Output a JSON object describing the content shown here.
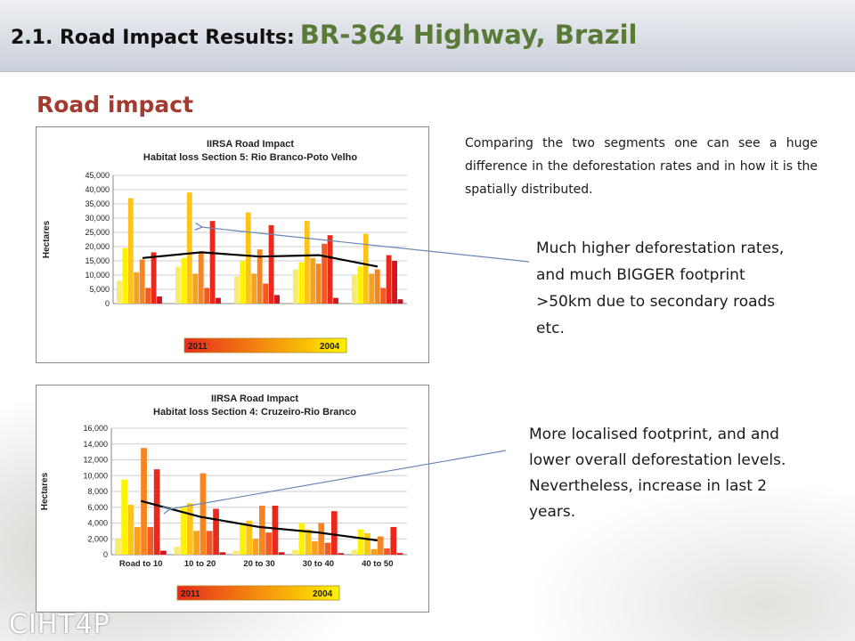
{
  "slide": {
    "title_prefix": "2.1.  Road Impact Results:",
    "title_main": "BR-364 Highway, Brazil",
    "subheading": "Road impact",
    "note_top": "Comparing the two segments one can see a huge difference in the deforestation rates and in how it is the spatially distributed.",
    "note_mid": "Much higher deforestation rates, and much BIGGER footprint >50km due to secondary roads etc.",
    "note_bot": "More localised footprint, and and lower overall deforestation levels.  Nevertheless, increase in last 2 years.",
    "logo_text": "CIHT",
    "logo_mark": "4P"
  },
  "chart_data": [
    {
      "type": "bar",
      "title": "IIRSA Road Impact",
      "subtitle": "Habitat loss Section 5: Rio Branco-Poto Velho",
      "ylabel": "Hectares",
      "ylim": [
        0,
        45000
      ],
      "yticks": [
        0,
        5000,
        10000,
        15000,
        20000,
        25000,
        30000,
        35000,
        40000,
        45000
      ],
      "ytick_labels": [
        "0",
        "5,000",
        "10,000",
        "15,000",
        "20,000",
        "25,000",
        "30,000",
        "35,000",
        "40,000",
        "45,000"
      ],
      "categories": [
        "",
        "",
        "",
        "",
        ""
      ],
      "series": [
        {
          "color": "#f7ec6e",
          "values": [
            8000,
            13000,
            9500,
            12000,
            10000
          ]
        },
        {
          "color": "#fff200",
          "values": [
            19500,
            16000,
            15000,
            14500,
            13000
          ]
        },
        {
          "color": "#fcc419",
          "values": [
            37000,
            39000,
            32000,
            29000,
            24500
          ]
        },
        {
          "color": "#f9a11b",
          "values": [
            11000,
            10500,
            10500,
            16000,
            10500
          ]
        },
        {
          "color": "#f7841f",
          "values": [
            15500,
            18000,
            19000,
            14000,
            12000
          ]
        },
        {
          "color": "#f15a24",
          "values": [
            5500,
            5500,
            7000,
            21000,
            5500
          ]
        },
        {
          "color": "#e8291c",
          "values": [
            18000,
            29000,
            27500,
            24000,
            17000
          ]
        },
        {
          "color": "#d4131b",
          "values": [
            2500,
            2000,
            3000,
            2000,
            15000
          ]
        },
        {
          "color": "#c1121f",
          "values": [
            0,
            0,
            0,
            0,
            1500
          ]
        }
      ],
      "trend": [
        16000,
        18000,
        16500,
        17000,
        13000
      ],
      "trend_color": "#000000",
      "legend": {
        "left_label": "2011",
        "right_label": "2004",
        "colors": [
          "#e8291c",
          "#fff200"
        ]
      }
    },
    {
      "type": "bar",
      "title": "IIRSA Road Impact",
      "subtitle": "Habitat loss Section 4: Cruzeiro-Rio Branco",
      "ylabel": "Hectares",
      "ylim": [
        0,
        16000
      ],
      "yticks": [
        0,
        2000,
        4000,
        6000,
        8000,
        10000,
        12000,
        14000,
        16000
      ],
      "ytick_labels": [
        "0",
        "2,000",
        "4,000",
        "6,000",
        "8,000",
        "10,000",
        "12,000",
        "14,000",
        "16,000"
      ],
      "categories": [
        "Road to 10",
        "10 to 20",
        "20 to 30",
        "30 to 40",
        "40 to 50"
      ],
      "series": [
        {
          "color": "#f7ec6e",
          "values": [
            2000,
            1000,
            500,
            600,
            600
          ]
        },
        {
          "color": "#fff200",
          "values": [
            9500,
            6000,
            3800,
            4000,
            3200
          ]
        },
        {
          "color": "#fcc419",
          "values": [
            6300,
            6500,
            4300,
            3200,
            2700
          ]
        },
        {
          "color": "#f9a11b",
          "values": [
            3500,
            3000,
            2000,
            1700,
            700
          ]
        },
        {
          "color": "#f7841f",
          "values": [
            13500,
            10300,
            6200,
            4000,
            2300
          ]
        },
        {
          "color": "#f15a24",
          "values": [
            3500,
            3000,
            2800,
            1500,
            800
          ]
        },
        {
          "color": "#e8291c",
          "values": [
            10800,
            5800,
            6200,
            5500,
            3500
          ]
        },
        {
          "color": "#d4131b",
          "values": [
            500,
            300,
            300,
            200,
            200
          ]
        }
      ],
      "trend": [
        6800,
        4800,
        3500,
        2800,
        1800
      ],
      "trend_color": "#000000",
      "legend": {
        "left_label": "2011",
        "right_label": "2004",
        "colors": [
          "#e8291c",
          "#fff200"
        ]
      }
    }
  ]
}
